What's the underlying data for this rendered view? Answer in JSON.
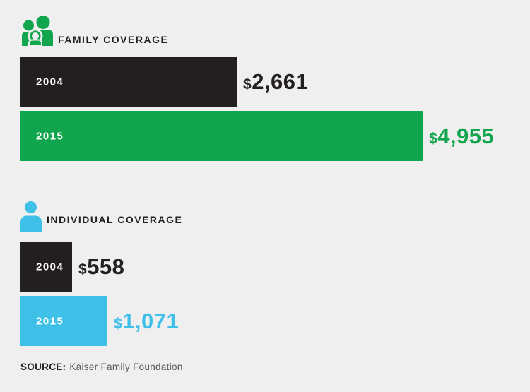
{
  "chart_data": {
    "type": "bar",
    "orientation": "horizontal",
    "currency": "$",
    "xmax": 4955,
    "grid": false,
    "legend_position": "none",
    "groups": [
      {
        "heading": "FAMILY COVERAGE",
        "icon": "family-icon",
        "categories": [
          "2004",
          "2015"
        ],
        "values": [
          2661,
          4955
        ],
        "values_display": [
          "2,661",
          "4,955"
        ],
        "value_labels": [
          "$2,661",
          "$4,955"
        ],
        "bar_colors": [
          "#231F20",
          "#11A64D"
        ]
      },
      {
        "heading": "INDIVIDUAL COVERAGE",
        "icon": "person-icon",
        "categories": [
          "2004",
          "2015"
        ],
        "values": [
          558,
          1071
        ],
        "values_display": [
          "558",
          "1,071"
        ],
        "value_labels": [
          "$558",
          "$1,071"
        ],
        "bar_colors": [
          "#231F20",
          "#3EC0E8"
        ]
      }
    ],
    "source": "SOURCE: Kaiser Family Foundation"
  },
  "source_line": {
    "label": "SOURCE:",
    "text": "Kaiser Family Foundation"
  },
  "colors": {
    "background": "#EFEFEF",
    "dark": "#231F20",
    "family_green": "#11A64D",
    "individual_blue": "#3EC0E8",
    "bar_label_white": "#FFFFFF",
    "source_text_gray": "#55565B"
  }
}
